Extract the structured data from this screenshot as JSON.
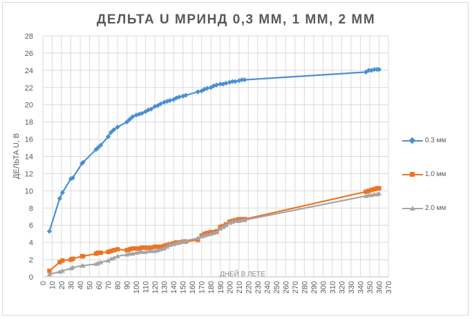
{
  "chart_data": {
    "type": "line",
    "title": "ДЕЛЬТА  U МРИНД 0,3 ММ, 1 ММ, 2 ММ",
    "xlabel": "ДНЕЙ В ЛЕТЕ",
    "ylabel": "ДЕЛЬТА U, В",
    "xlim": [
      0,
      370
    ],
    "ylim": [
      0,
      28
    ],
    "x_ticks": [
      0,
      10,
      20,
      30,
      40,
      50,
      60,
      70,
      80,
      90,
      100,
      110,
      120,
      130,
      140,
      150,
      160,
      170,
      180,
      190,
      200,
      210,
      220,
      230,
      240,
      250,
      260,
      270,
      280,
      290,
      300,
      310,
      320,
      330,
      340,
      350,
      360,
      370
    ],
    "y_ticks": [
      0,
      2,
      4,
      6,
      8,
      10,
      12,
      14,
      16,
      18,
      20,
      22,
      24,
      26,
      28
    ],
    "y_tick_labels": [
      "0",
      "2",
      "4",
      "6",
      "8",
      "10",
      "12",
      "14",
      "16",
      "18",
      "20",
      "22",
      "24",
      "26",
      "28"
    ],
    "grid": true,
    "legend_position": "right",
    "series": [
      {
        "name": "0.3 мм",
        "color": "#4a8fd4",
        "marker": "diamond",
        "x": [
          7,
          18,
          21,
          30,
          32,
          42,
          43,
          57,
          59,
          62,
          70,
          73,
          76,
          80,
          90,
          93,
          96,
          100,
          103,
          106,
          110,
          113,
          116,
          120,
          123,
          126,
          130,
          133,
          136,
          140,
          143,
          146,
          150,
          153,
          166,
          170,
          173,
          176,
          180,
          183,
          186,
          190,
          193,
          196,
          200,
          203,
          206,
          210,
          213,
          216,
          346,
          349,
          352,
          355,
          358,
          360
        ],
        "y": [
          5.3,
          9.1,
          9.8,
          11.4,
          11.5,
          13.2,
          13.3,
          14.8,
          15.0,
          15.3,
          16.3,
          16.8,
          17.1,
          17.4,
          18.0,
          18.3,
          18.6,
          18.8,
          18.9,
          19.0,
          19.2,
          19.4,
          19.5,
          19.8,
          19.9,
          20.1,
          20.3,
          20.4,
          20.5,
          20.6,
          20.8,
          20.9,
          21.0,
          21.1,
          21.5,
          21.6,
          21.8,
          21.9,
          22.0,
          22.2,
          22.3,
          22.4,
          22.4,
          22.5,
          22.6,
          22.7,
          22.7,
          22.8,
          22.9,
          22.9,
          23.8,
          24.0,
          24.0,
          24.1,
          24.1,
          24.1
        ]
      },
      {
        "name": "1.0 мм",
        "color": "#ec7424",
        "marker": "square",
        "x": [
          7,
          18,
          21,
          30,
          32,
          42,
          43,
          57,
          59,
          62,
          70,
          73,
          76,
          80,
          90,
          93,
          96,
          100,
          103,
          106,
          110,
          113,
          116,
          120,
          123,
          126,
          130,
          133,
          136,
          140,
          143,
          146,
          150,
          153,
          166,
          170,
          173,
          176,
          180,
          183,
          186,
          190,
          193,
          196,
          200,
          203,
          206,
          210,
          213,
          216,
          346,
          349,
          352,
          355,
          358,
          360
        ],
        "y": [
          0.7,
          1.7,
          1.9,
          2.0,
          2.1,
          2.4,
          2.4,
          2.7,
          2.8,
          2.8,
          2.9,
          3.0,
          3.1,
          3.2,
          3.1,
          3.2,
          3.3,
          3.3,
          3.3,
          3.4,
          3.4,
          3.4,
          3.4,
          3.5,
          3.5,
          3.5,
          3.6,
          3.7,
          3.8,
          3.9,
          4.0,
          4.0,
          4.1,
          4.1,
          4.3,
          4.8,
          5.0,
          5.1,
          5.2,
          5.2,
          5.3,
          5.8,
          5.9,
          6.1,
          6.4,
          6.5,
          6.6,
          6.7,
          6.7,
          6.7,
          9.9,
          10.0,
          10.1,
          10.2,
          10.3,
          10.3
        ]
      },
      {
        "name": "2.0 мм",
        "color": "#a5a5a5",
        "marker": "triangle",
        "x": [
          7,
          18,
          21,
          30,
          32,
          42,
          43,
          57,
          59,
          62,
          70,
          73,
          76,
          80,
          90,
          93,
          96,
          100,
          103,
          106,
          110,
          113,
          116,
          120,
          123,
          126,
          130,
          133,
          136,
          140,
          143,
          146,
          150,
          153,
          166,
          170,
          173,
          176,
          180,
          183,
          186,
          190,
          193,
          196,
          200,
          203,
          206,
          210,
          213,
          216,
          346,
          349,
          352,
          355,
          358,
          360
        ],
        "y": [
          0.3,
          0.6,
          0.7,
          1.0,
          1.1,
          1.3,
          1.3,
          1.5,
          1.6,
          1.7,
          1.9,
          2.1,
          2.2,
          2.4,
          2.6,
          2.7,
          2.7,
          2.8,
          2.9,
          2.9,
          2.9,
          3.0,
          3.0,
          3.0,
          3.1,
          3.2,
          3.3,
          3.5,
          3.7,
          3.8,
          3.9,
          4.0,
          4.1,
          4.2,
          4.5,
          4.7,
          4.8,
          4.9,
          5.0,
          5.1,
          5.2,
          5.6,
          5.8,
          6.0,
          6.3,
          6.4,
          6.5,
          6.5,
          6.6,
          6.6,
          9.4,
          9.5,
          9.5,
          9.6,
          9.6,
          9.7
        ]
      }
    ]
  }
}
